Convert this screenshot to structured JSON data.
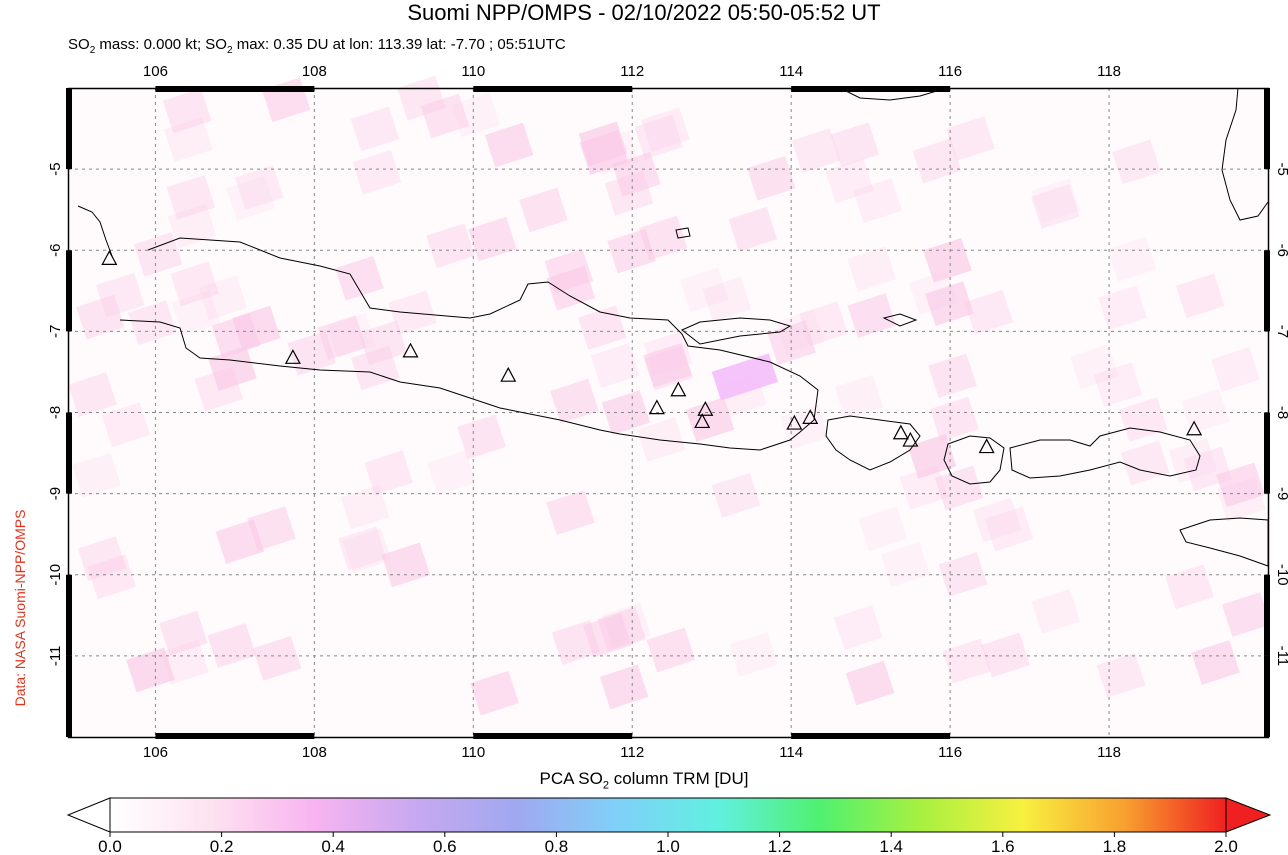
{
  "header": {
    "title": "Suomi NPP/OMPS - 02/10/2022 05:50-05:52 UT",
    "subtitle_prefix": "SO",
    "subtitle_sub": "2",
    "subtitle_mid": " mass: 0.000 kt; SO",
    "subtitle_sub2": "2",
    "subtitle_rest": " max: 0.35 DU at lon: 113.39 lat: -7.70 ; 05:51UTC"
  },
  "credit": "Data: NASA Suomi-NPP/OMPS",
  "map": {
    "lon_ticks": [
      "106",
      "108",
      "110",
      "112",
      "114",
      "116",
      "118"
    ],
    "lat_ticks": [
      "-5",
      "-6",
      "-7",
      "-8",
      "-9",
      "-10",
      "-11"
    ],
    "lon_range": [
      104.9,
      120.0
    ],
    "lat_range": [
      -12.0,
      -4.0
    ],
    "grid": true,
    "volcano_marker": "triangle-icon",
    "volcanoes": [
      {
        "lon": 105.42,
        "lat": -6.1
      },
      {
        "lon": 107.73,
        "lat": -7.32
      },
      {
        "lon": 109.21,
        "lat": -7.24
      },
      {
        "lon": 110.44,
        "lat": -7.54
      },
      {
        "lon": 112.31,
        "lat": -7.94
      },
      {
        "lon": 112.58,
        "lat": -7.72
      },
      {
        "lon": 112.92,
        "lat": -7.96
      },
      {
        "lon": 112.88,
        "lat": -8.11
      },
      {
        "lon": 114.04,
        "lat": -8.13
      },
      {
        "lon": 114.24,
        "lat": -8.06
      },
      {
        "lon": 115.38,
        "lat": -8.25
      },
      {
        "lon": 115.5,
        "lat": -8.34
      },
      {
        "lon": 116.46,
        "lat": -8.42
      },
      {
        "lon": 119.07,
        "lat": -8.2
      }
    ]
  },
  "colorbar": {
    "title_prefix": "PCA SO",
    "title_sub": "2",
    "title_rest": " column TRM [DU]",
    "ticks": [
      "0.0",
      "0.2",
      "0.4",
      "0.6",
      "0.8",
      "1.0",
      "1.2",
      "1.4",
      "1.6",
      "1.8",
      "2.0"
    ],
    "colors": [
      "#ffffff",
      "#fde2f0",
      "#f8b4f0",
      "#c8a8f0",
      "#a0a8f0",
      "#80d0f8",
      "#60f0e0",
      "#50f070",
      "#a8f040",
      "#f8f040",
      "#f8a030",
      "#f02020"
    ]
  }
}
